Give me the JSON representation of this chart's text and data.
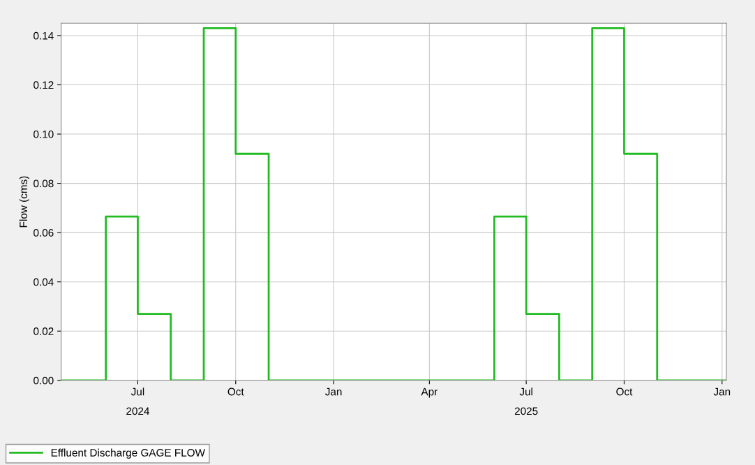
{
  "chart_data": {
    "type": "step",
    "ylabel": "Flow (cms)",
    "series": [
      {
        "name": "Effluent Discharge GAGE FLOW",
        "color": "#22bb22",
        "x": [
          "2024-04-20",
          "2024-06-01",
          "2024-07-01",
          "2024-08-01",
          "2024-09-01",
          "2024-10-01",
          "2024-11-01",
          "2025-06-01",
          "2025-07-01",
          "2025-08-01",
          "2025-09-01",
          "2025-10-01",
          "2025-11-01",
          "2026-01-05"
        ],
        "values": [
          0,
          0.0665,
          0.027,
          0,
          0.143,
          0.092,
          0,
          0.0665,
          0.027,
          0,
          0.143,
          0.092,
          0,
          0
        ]
      }
    ],
    "xlim": [
      "2024-04-20",
      "2026-01-05"
    ],
    "xticks": [
      {
        "value": "2024-07-01",
        "label": "Jul"
      },
      {
        "value": "2024-10-01",
        "label": "Oct"
      },
      {
        "value": "2025-01-01",
        "label": "Jan"
      },
      {
        "value": "2025-04-01",
        "label": "Apr"
      },
      {
        "value": "2025-07-01",
        "label": "Jul"
      },
      {
        "value": "2025-10-01",
        "label": "Oct"
      },
      {
        "value": "2026-01-01",
        "label": "Jan"
      }
    ],
    "x2lim": [
      "2024-04-20",
      "2026-01-05"
    ],
    "x2ticks": [
      {
        "value": "2024-07-01",
        "label": "2024"
      },
      {
        "value": "2025-07-01",
        "label": "2025"
      }
    ],
    "ylim": [
      0,
      0.145
    ],
    "yticks": [
      {
        "value": 0,
        "label": "0.00"
      },
      {
        "value": 0.02,
        "label": "0.02"
      },
      {
        "value": 0.04,
        "label": "0.04"
      },
      {
        "value": 0.06,
        "label": "0.06"
      },
      {
        "value": 0.08,
        "label": "0.08"
      },
      {
        "value": 0.1,
        "label": "0.10"
      },
      {
        "value": 0.12,
        "label": "0.12"
      },
      {
        "value": 0.14,
        "label": "0.14"
      }
    ],
    "grid": true,
    "legend": "bottom",
    "line_style": "solid",
    "marker": "none"
  }
}
